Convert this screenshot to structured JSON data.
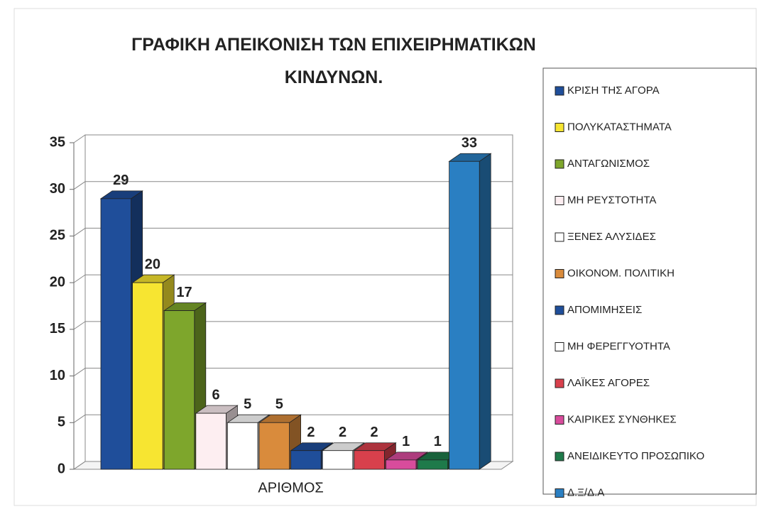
{
  "chart_data": {
    "type": "bar3d",
    "title": "ΓΡΑΦΙΚΗ ΑΠΕΙΚΟΝΙΣΗ ΤΩΝ ΕΠΙΧΕΙΡΗΜΑΤΙΚΩΝ ΚΙΝΔΥΝΩΝ.",
    "categories": [
      "ΑΡΙΘΜΟΣ"
    ],
    "series": [
      {
        "name": "ΚΡΙΣΗ ΤΗΣ ΑΓΟΡΑ",
        "color": "#1f4e9a",
        "values": [
          29
        ]
      },
      {
        "name": "ΠΟΛΥΚΑΤΑΣΤΗΜΑΤΑ",
        "color": "#f7e531",
        "values": [
          20
        ]
      },
      {
        "name": "ΑΝΤΑΓΩΝΙΣΜΟΣ",
        "color": "#7ea62c",
        "values": [
          17
        ]
      },
      {
        "name": "ΜΗ ΡΕΥΣΤΟΤΗΤΑ",
        "color": "#fdeef1",
        "values": [
          6
        ]
      },
      {
        "name": "ΞΕΝΕΣ ΑΛΥΣΙΔΕΣ",
        "color": "#ffffff",
        "values": [
          5
        ]
      },
      {
        "name": "ΟΙΚΟΝΟΜ. ΠΟΛΙΤΙΚΗ",
        "color": "#d98b3c",
        "values": [
          5
        ]
      },
      {
        "name": "ΑΠΟΜΙΜΗΣΕΙΣ",
        "color": "#1f4e9a",
        "values": [
          2
        ]
      },
      {
        "name": "ΜΗ ΦΕΡΕΓΓΥΟΤΗΤΑ",
        "color": "#ffffff",
        "values": [
          2
        ]
      },
      {
        "name": "ΛΑΪΚΕΣ ΑΓΟΡΕΣ",
        "color": "#d8404c",
        "values": [
          2
        ]
      },
      {
        "name": "ΚΑΙΡΙΚΕΣ ΣΥΝΘΗΚΕΣ",
        "color": "#d84c9c",
        "values": [
          1
        ]
      },
      {
        "name": "ΑΝΕΙΔΙΚΕΥΤΟ ΠΡΟΣΩΠΙΚΟ",
        "color": "#1e7a4a",
        "values": [
          1
        ]
      },
      {
        "name": "Δ.Ξ/Δ.Α",
        "color": "#2a7fc2",
        "values": [
          33
        ]
      }
    ],
    "ylim": [
      0,
      35
    ],
    "yticks": [
      0,
      5,
      10,
      15,
      20,
      25,
      30,
      35
    ],
    "grid": true,
    "legend": "right"
  }
}
